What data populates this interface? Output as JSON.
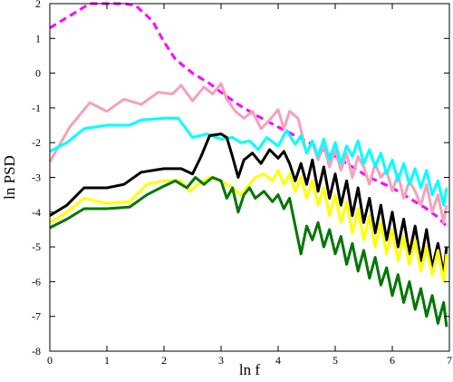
{
  "chart_data": {
    "type": "line",
    "xlabel": "ln f",
    "ylabel": "ln PSD",
    "xlim": [
      0,
      7
    ],
    "ylim": [
      -8,
      2
    ],
    "x_ticks": [
      0,
      1,
      2,
      3,
      4,
      5,
      6,
      7
    ],
    "y_ticks": [
      2,
      1,
      0,
      -1,
      -2,
      -3,
      -4,
      -5,
      -6,
      -7,
      -8
    ],
    "grid": false,
    "series": [
      {
        "color": "#ff00ff",
        "dashed": true,
        "points": [
          [
            0,
            1.3
          ],
          [
            0.3,
            1.6
          ],
          [
            0.7,
            2.0
          ],
          [
            1.0,
            2.0
          ],
          [
            1.3,
            2.0
          ],
          [
            1.5,
            1.95
          ],
          [
            1.8,
            1.5
          ],
          [
            2.0,
            0.9
          ],
          [
            2.2,
            0.4
          ],
          [
            2.5,
            0.0
          ],
          [
            2.8,
            -0.3
          ],
          [
            3.0,
            -0.55
          ],
          [
            3.3,
            -0.9
          ],
          [
            3.6,
            -1.2
          ],
          [
            4.0,
            -1.55
          ],
          [
            4.3,
            -1.8
          ],
          [
            4.6,
            -2.05
          ],
          [
            5.0,
            -2.4
          ],
          [
            5.3,
            -2.7
          ],
          [
            5.6,
            -3.0
          ],
          [
            6.0,
            -3.3
          ],
          [
            6.3,
            -3.6
          ],
          [
            6.6,
            -3.9
          ],
          [
            6.8,
            -4.15
          ],
          [
            6.95,
            -4.4
          ]
        ]
      },
      {
        "color": "#f5a0c0",
        "dashed": false,
        "points": [
          [
            0,
            -2.55
          ],
          [
            0.35,
            -1.55
          ],
          [
            0.7,
            -0.85
          ],
          [
            1.0,
            -1.1
          ],
          [
            1.3,
            -0.75
          ],
          [
            1.6,
            -0.9
          ],
          [
            1.9,
            -0.55
          ],
          [
            2.15,
            -0.6
          ],
          [
            2.3,
            -0.35
          ],
          [
            2.5,
            -0.8
          ],
          [
            2.7,
            -0.4
          ],
          [
            2.85,
            -0.6
          ],
          [
            3.0,
            -0.3
          ],
          [
            3.1,
            -0.75
          ],
          [
            3.25,
            -1.1
          ],
          [
            3.4,
            -1.3
          ],
          [
            3.55,
            -1.1
          ],
          [
            3.7,
            -1.6
          ],
          [
            3.85,
            -1.35
          ],
          [
            4.0,
            -1.05
          ],
          [
            4.1,
            -1.6
          ],
          [
            4.2,
            -1.1
          ],
          [
            4.35,
            -1.3
          ],
          [
            4.5,
            -2.3
          ],
          [
            4.6,
            -2.0
          ],
          [
            4.7,
            -2.5
          ],
          [
            4.8,
            -2.1
          ],
          [
            4.9,
            -2.7
          ],
          [
            5.0,
            -2.2
          ],
          [
            5.1,
            -2.8
          ],
          [
            5.2,
            -2.3
          ],
          [
            5.3,
            -3.0
          ],
          [
            5.4,
            -2.4
          ],
          [
            5.5,
            -2.7
          ],
          [
            5.6,
            -3.2
          ],
          [
            5.7,
            -2.6
          ],
          [
            5.8,
            -3.0
          ],
          [
            5.9,
            -2.8
          ],
          [
            6.0,
            -3.4
          ],
          [
            6.1,
            -2.9
          ],
          [
            6.2,
            -3.6
          ],
          [
            6.3,
            -3.1
          ],
          [
            6.4,
            -3.4
          ],
          [
            6.5,
            -3.8
          ],
          [
            6.6,
            -3.2
          ],
          [
            6.7,
            -4.0
          ],
          [
            6.8,
            -3.5
          ],
          [
            6.9,
            -4.3
          ],
          [
            6.95,
            -3.8
          ]
        ]
      },
      {
        "color": "#00ffff",
        "dashed": false,
        "points": [
          [
            0,
            -2.25
          ],
          [
            0.3,
            -2.0
          ],
          [
            0.6,
            -1.6
          ],
          [
            1.0,
            -1.5
          ],
          [
            1.4,
            -1.5
          ],
          [
            1.6,
            -1.35
          ],
          [
            2.0,
            -1.3
          ],
          [
            2.25,
            -1.3
          ],
          [
            2.5,
            -1.85
          ],
          [
            2.75,
            -1.75
          ],
          [
            3.0,
            -1.9
          ],
          [
            3.2,
            -1.85
          ],
          [
            3.35,
            -2.0
          ],
          [
            3.5,
            -1.95
          ],
          [
            3.65,
            -2.2
          ],
          [
            3.8,
            -1.85
          ],
          [
            4.0,
            -2.1
          ],
          [
            4.15,
            -1.65
          ],
          [
            4.3,
            -2.05
          ],
          [
            4.4,
            -1.8
          ],
          [
            4.5,
            -2.3
          ],
          [
            4.6,
            -1.95
          ],
          [
            4.7,
            -2.4
          ],
          [
            4.8,
            -1.9
          ],
          [
            4.9,
            -2.5
          ],
          [
            5.0,
            -2.0
          ],
          [
            5.1,
            -2.6
          ],
          [
            5.2,
            -2.1
          ],
          [
            5.3,
            -2.4
          ],
          [
            5.4,
            -1.95
          ],
          [
            5.5,
            -2.6
          ],
          [
            5.6,
            -2.2
          ],
          [
            5.7,
            -2.7
          ],
          [
            5.8,
            -2.3
          ],
          [
            5.9,
            -2.9
          ],
          [
            6.0,
            -2.5
          ],
          [
            6.1,
            -3.1
          ],
          [
            6.2,
            -2.6
          ],
          [
            6.3,
            -3.2
          ],
          [
            6.4,
            -2.75
          ],
          [
            6.5,
            -3.3
          ],
          [
            6.6,
            -2.8
          ],
          [
            6.7,
            -3.5
          ],
          [
            6.8,
            -3.1
          ],
          [
            6.9,
            -3.8
          ],
          [
            6.95,
            -3.3
          ]
        ]
      },
      {
        "color": "#000000",
        "dashed": false,
        "points": [
          [
            0,
            -4.1
          ],
          [
            0.3,
            -3.8
          ],
          [
            0.6,
            -3.3
          ],
          [
            1.0,
            -3.3
          ],
          [
            1.3,
            -3.2
          ],
          [
            1.6,
            -2.85
          ],
          [
            2.0,
            -2.75
          ],
          [
            2.3,
            -2.75
          ],
          [
            2.5,
            -2.9
          ],
          [
            2.65,
            -2.4
          ],
          [
            2.8,
            -1.8
          ],
          [
            3.0,
            -1.75
          ],
          [
            3.1,
            -1.85
          ],
          [
            3.2,
            -2.4
          ],
          [
            3.3,
            -3.0
          ],
          [
            3.4,
            -2.5
          ],
          [
            3.55,
            -2.3
          ],
          [
            3.7,
            -2.6
          ],
          [
            3.85,
            -2.2
          ],
          [
            4.0,
            -2.45
          ],
          [
            4.1,
            -2.25
          ],
          [
            4.2,
            -2.6
          ],
          [
            4.3,
            -3.1
          ],
          [
            4.4,
            -2.6
          ],
          [
            4.5,
            -3.2
          ],
          [
            4.6,
            -2.5
          ],
          [
            4.7,
            -3.4
          ],
          [
            4.8,
            -2.7
          ],
          [
            4.9,
            -3.6
          ],
          [
            5.0,
            -2.9
          ],
          [
            5.1,
            -3.8
          ],
          [
            5.2,
            -3.1
          ],
          [
            5.3,
            -4.1
          ],
          [
            5.4,
            -3.3
          ],
          [
            5.5,
            -4.3
          ],
          [
            5.6,
            -3.6
          ],
          [
            5.7,
            -4.6
          ],
          [
            5.8,
            -3.8
          ],
          [
            5.9,
            -4.8
          ],
          [
            6.0,
            -4.0
          ],
          [
            6.1,
            -5.0
          ],
          [
            6.2,
            -4.2
          ],
          [
            6.3,
            -5.2
          ],
          [
            6.4,
            -4.4
          ],
          [
            6.5,
            -5.4
          ],
          [
            6.6,
            -4.5
          ],
          [
            6.7,
            -5.6
          ],
          [
            6.8,
            -4.9
          ],
          [
            6.9,
            -5.8
          ],
          [
            6.95,
            -5.0
          ]
        ]
      },
      {
        "color": "#ffff00",
        "dashed": false,
        "points": [
          [
            0,
            -4.3
          ],
          [
            0.3,
            -4.0
          ],
          [
            0.6,
            -3.6
          ],
          [
            1.0,
            -3.75
          ],
          [
            1.4,
            -3.7
          ],
          [
            1.7,
            -3.2
          ],
          [
            2.0,
            -3.1
          ],
          [
            2.3,
            -3.1
          ],
          [
            2.45,
            -3.4
          ],
          [
            2.6,
            -3.2
          ],
          [
            2.8,
            -3.0
          ],
          [
            3.0,
            -3.1
          ],
          [
            3.2,
            -3.3
          ],
          [
            3.35,
            -3.5
          ],
          [
            3.5,
            -3.2
          ],
          [
            3.6,
            -3.0
          ],
          [
            3.75,
            -2.9
          ],
          [
            3.9,
            -3.1
          ],
          [
            4.0,
            -2.8
          ],
          [
            4.1,
            -3.2
          ],
          [
            4.2,
            -2.9
          ],
          [
            4.3,
            -3.4
          ],
          [
            4.4,
            -3.0
          ],
          [
            4.5,
            -3.6
          ],
          [
            4.6,
            -3.1
          ],
          [
            4.7,
            -3.8
          ],
          [
            4.8,
            -3.3
          ],
          [
            4.9,
            -4.1
          ],
          [
            5.0,
            -3.5
          ],
          [
            5.1,
            -4.3
          ],
          [
            5.2,
            -3.7
          ],
          [
            5.3,
            -4.6
          ],
          [
            5.4,
            -3.9
          ],
          [
            5.5,
            -4.8
          ],
          [
            5.6,
            -4.1
          ],
          [
            5.7,
            -5.0
          ],
          [
            5.8,
            -4.3
          ],
          [
            5.9,
            -5.2
          ],
          [
            6.0,
            -4.5
          ],
          [
            6.1,
            -5.4
          ],
          [
            6.2,
            -4.7
          ],
          [
            6.3,
            -5.5
          ],
          [
            6.4,
            -4.8
          ],
          [
            6.5,
            -5.7
          ],
          [
            6.6,
            -5.0
          ],
          [
            6.7,
            -5.8
          ],
          [
            6.8,
            -5.1
          ],
          [
            6.9,
            -6.0
          ],
          [
            6.95,
            -5.2
          ]
        ]
      },
      {
        "color": "#007700",
        "dashed": false,
        "points": [
          [
            0,
            -4.45
          ],
          [
            0.3,
            -4.2
          ],
          [
            0.6,
            -3.9
          ],
          [
            1.0,
            -3.9
          ],
          [
            1.4,
            -3.85
          ],
          [
            1.7,
            -3.5
          ],
          [
            2.0,
            -3.25
          ],
          [
            2.2,
            -3.1
          ],
          [
            2.4,
            -3.3
          ],
          [
            2.55,
            -3.0
          ],
          [
            2.7,
            -3.2
          ],
          [
            2.85,
            -3.0
          ],
          [
            3.0,
            -3.1
          ],
          [
            3.1,
            -3.6
          ],
          [
            3.2,
            -3.3
          ],
          [
            3.3,
            -4.0
          ],
          [
            3.4,
            -3.5
          ],
          [
            3.5,
            -3.3
          ],
          [
            3.6,
            -3.6
          ],
          [
            3.75,
            -3.4
          ],
          [
            3.9,
            -3.7
          ],
          [
            4.0,
            -3.5
          ],
          [
            4.1,
            -3.9
          ],
          [
            4.2,
            -3.6
          ],
          [
            4.3,
            -4.4
          ],
          [
            4.4,
            -5.2
          ],
          [
            4.5,
            -4.4
          ],
          [
            4.6,
            -4.8
          ],
          [
            4.7,
            -4.3
          ],
          [
            4.8,
            -5.0
          ],
          [
            4.9,
            -4.5
          ],
          [
            5.0,
            -5.2
          ],
          [
            5.1,
            -4.7
          ],
          [
            5.2,
            -5.5
          ],
          [
            5.3,
            -4.9
          ],
          [
            5.4,
            -5.7
          ],
          [
            5.5,
            -5.1
          ],
          [
            5.6,
            -5.9
          ],
          [
            5.7,
            -5.3
          ],
          [
            5.8,
            -6.1
          ],
          [
            5.9,
            -5.6
          ],
          [
            6.0,
            -6.4
          ],
          [
            6.1,
            -5.8
          ],
          [
            6.2,
            -6.6
          ],
          [
            6.3,
            -6.0
          ],
          [
            6.4,
            -6.8
          ],
          [
            6.5,
            -6.2
          ],
          [
            6.6,
            -7.0
          ],
          [
            6.7,
            -6.4
          ],
          [
            6.8,
            -7.2
          ],
          [
            6.9,
            -6.6
          ],
          [
            6.95,
            -7.3
          ]
        ]
      }
    ]
  }
}
